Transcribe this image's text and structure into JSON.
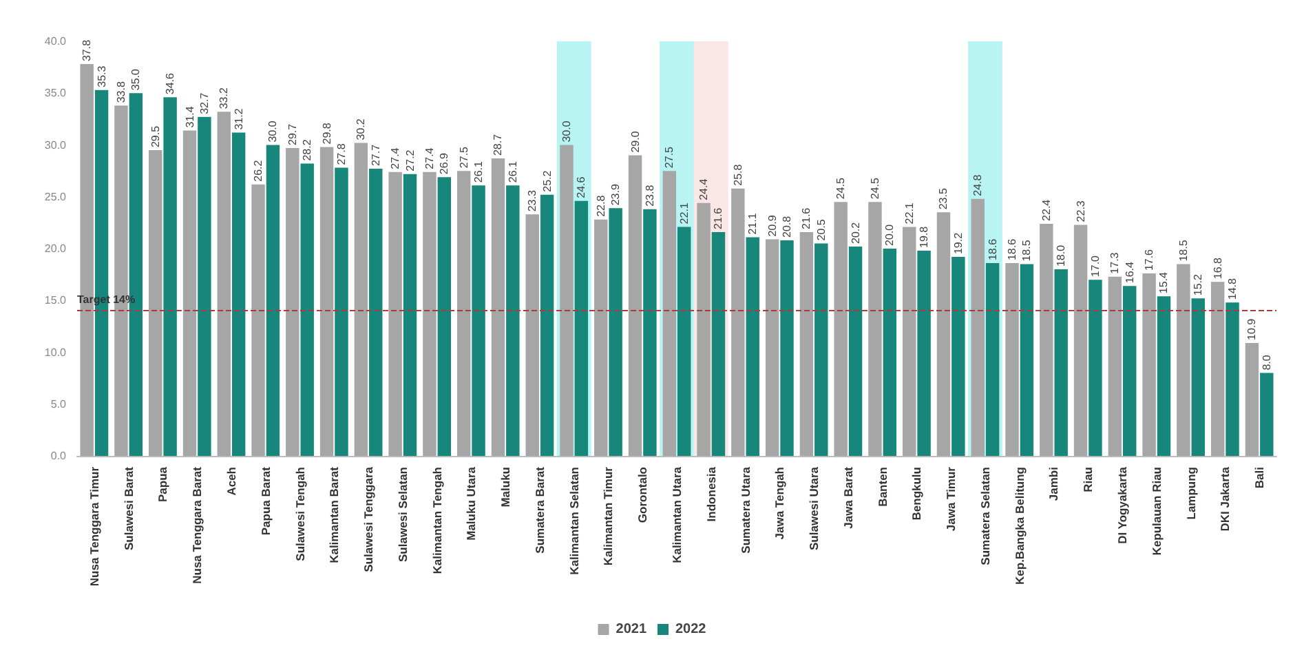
{
  "chart_data": {
    "type": "bar",
    "categories": [
      "Nusa Tenggara Timur",
      "Sulawesi Barat",
      "Papua",
      "Nusa Tenggara Barat",
      "Aceh",
      "Papua Barat",
      "Sulawesi Tengah",
      "Kalimantan Barat",
      "Sulawesi Tenggara",
      "Sulawesi Selatan",
      "Kalimantan Tengah",
      "Maluku Utara",
      "Maluku",
      "Sumatera Barat",
      "Kalimantan Selatan",
      "Kalimantan Timur",
      "Gorontalo",
      "Kalimantan Utara",
      "Indonesia",
      "Sumatera Utara",
      "Jawa Tengah",
      "Sulawesi Utara",
      "Jawa Barat",
      "Banten",
      "Bengkulu",
      "Jawa Timur",
      "Sumatera Selatan",
      "Kep.Bangka Belitung",
      "Jambi",
      "Riau",
      "DI Yogyakarta",
      "Kepulauan Riau",
      "Lampung",
      "DKI Jakarta",
      "Bali"
    ],
    "series": [
      {
        "name": "2021",
        "color": "#a6a6a6",
        "values": [
          37.8,
          33.8,
          29.5,
          31.4,
          33.2,
          26.2,
          29.7,
          29.8,
          30.2,
          27.4,
          27.4,
          27.5,
          28.7,
          23.3,
          30.0,
          22.8,
          29.0,
          27.5,
          24.4,
          25.8,
          20.9,
          21.6,
          24.5,
          24.5,
          22.1,
          23.5,
          24.8,
          18.6,
          22.4,
          22.3,
          17.3,
          17.6,
          18.5,
          16.8,
          10.9
        ],
        "value_labels": [
          "37.8",
          "33.8",
          "29.5",
          "31.4",
          "33.2",
          "26.2",
          "29.7",
          "29.8",
          "30.2",
          "27.4",
          "27.4",
          "27.5",
          "28.7",
          "23.3",
          "30.0",
          "22.8",
          "29.0",
          "27.5",
          "24.4",
          "25.8",
          "20.9",
          "21.6",
          "24.5",
          "24.5",
          "22.1",
          "23.5",
          "24.8",
          "18.6",
          "22.4",
          "22.3",
          "17.3",
          "17.6",
          "18.5",
          "16.8",
          "10.9"
        ]
      },
      {
        "name": "2022",
        "color": "#16877a",
        "values": [
          35.3,
          35.0,
          34.6,
          32.7,
          31.2,
          30.0,
          28.2,
          27.8,
          27.7,
          27.2,
          26.9,
          26.1,
          26.1,
          25.2,
          24.6,
          23.9,
          23.8,
          22.1,
          21.6,
          21.1,
          20.8,
          20.5,
          20.2,
          20.0,
          19.8,
          19.2,
          18.6,
          18.5,
          18.0,
          17.0,
          16.4,
          15.4,
          15.2,
          14.8,
          8.0
        ],
        "value_labels": [
          "35.3",
          "35.0",
          "34.6",
          "32.7",
          "31.2",
          "30.0",
          "28.2",
          "27.8",
          "27.7",
          "27.2",
          "26.9",
          "26.1",
          "26.1",
          "25.2",
          "24.6",
          "23.9",
          "23.8",
          "22.1",
          "21.6",
          "21.1",
          "20.8",
          "20.5",
          "20.2",
          "20.0",
          "19.8",
          "19.2",
          "18.6",
          "18.5",
          "18.0",
          "17.0",
          "16.4",
          "15.4",
          "15.2",
          "14.8",
          "8.0"
        ]
      }
    ],
    "ylim": [
      0,
      40
    ],
    "yticks": [
      {
        "value": 0,
        "label": "0.0"
      },
      {
        "value": 5,
        "label": "5.0"
      },
      {
        "value": 10,
        "label": "10.0"
      },
      {
        "value": 15,
        "label": "15.0"
      },
      {
        "value": 20,
        "label": "20.0"
      },
      {
        "value": 25,
        "label": "25.0"
      },
      {
        "value": 30,
        "label": "30.0"
      },
      {
        "value": 35,
        "label": "35.0"
      },
      {
        "value": 40,
        "label": "40.0"
      }
    ],
    "ref_lines": [
      {
        "axis": "y",
        "value": 14,
        "label": "Target 14%",
        "color": "#b03a3a",
        "line_style": "dashed"
      }
    ],
    "bands": [
      {
        "axis": "x",
        "from": "Kalimantan Selatan",
        "to": "Kalimantan Selatan",
        "color": "#b8f4f4"
      },
      {
        "axis": "x",
        "from": "Kalimantan Utara",
        "to": "Kalimantan Utara",
        "color": "#b8f4f4"
      },
      {
        "axis": "x",
        "from": "Indonesia",
        "to": "Indonesia",
        "color": "#fbe6e6"
      },
      {
        "axis": "x",
        "from": "Sumatera Selatan",
        "to": "Sumatera Selatan",
        "color": "#b8f4f4"
      }
    ],
    "grid": false,
    "legend": "bottom"
  }
}
